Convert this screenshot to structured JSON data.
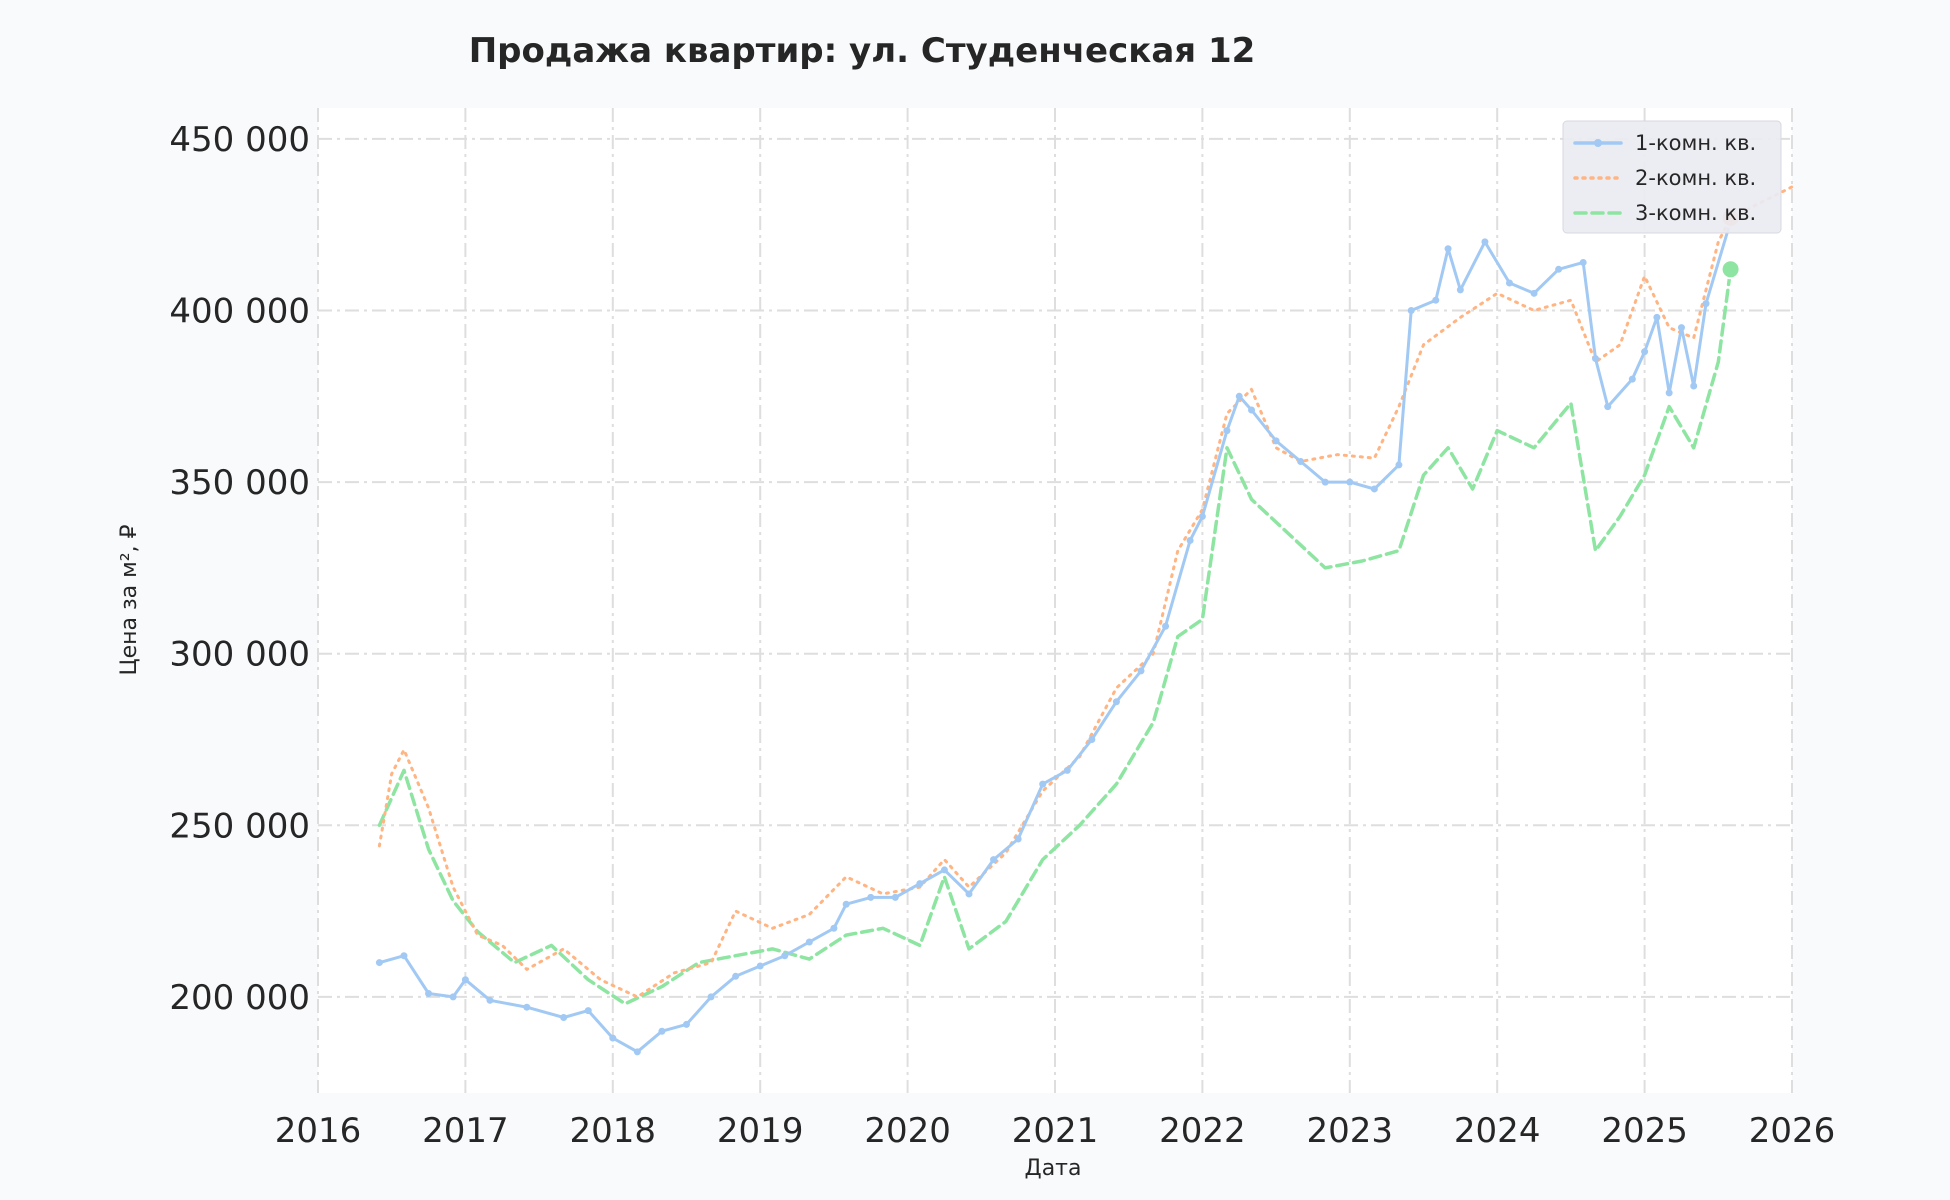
{
  "chart_data": {
    "type": "line",
    "title": "Продажа квартир: ул. Студенческая 12",
    "xlabel": "Дата",
    "ylabel": "Цена за м², ₽",
    "x_ticks": [
      "2016",
      "2017",
      "2018",
      "2019",
      "2020",
      "2021",
      "2022",
      "2023",
      "2024",
      "2025",
      "2026"
    ],
    "y_ticks": [
      "200 000",
      "250 000",
      "300 000",
      "350 000",
      "400 000",
      "450 000"
    ],
    "xlim": [
      "2016-01-01",
      "2026-01-01"
    ],
    "ylim": [
      172000,
      459000
    ],
    "grid": true,
    "legend_position": "top-right",
    "series": [
      {
        "name": "1-комн. кв.",
        "color": "#a1c9f4",
        "style": "solid-with-markers",
        "points": [
          [
            "2016-06",
            210000
          ],
          [
            "2016-08",
            212000
          ],
          [
            "2016-10",
            201000
          ],
          [
            "2016-12",
            200000
          ],
          [
            "2017-01",
            205000
          ],
          [
            "2017-03",
            199000
          ],
          [
            "2017-06",
            197000
          ],
          [
            "2017-09",
            194000
          ],
          [
            "2017-11",
            196000
          ],
          [
            "2018-01",
            188000
          ],
          [
            "2018-03",
            184000
          ],
          [
            "2018-05",
            190000
          ],
          [
            "2018-07",
            192000
          ],
          [
            "2018-09",
            200000
          ],
          [
            "2018-11",
            206000
          ],
          [
            "2019-01",
            209000
          ],
          [
            "2019-03",
            212000
          ],
          [
            "2019-05",
            216000
          ],
          [
            "2019-07",
            220000
          ],
          [
            "2019-08",
            227000
          ],
          [
            "2019-10",
            229000
          ],
          [
            "2019-12",
            229000
          ],
          [
            "2020-02",
            233000
          ],
          [
            "2020-04",
            237000
          ],
          [
            "2020-06",
            230000
          ],
          [
            "2020-08",
            240000
          ],
          [
            "2020-10",
            246000
          ],
          [
            "2020-12",
            262000
          ],
          [
            "2021-02",
            266000
          ],
          [
            "2021-04",
            275000
          ],
          [
            "2021-06",
            286000
          ],
          [
            "2021-08",
            295000
          ],
          [
            "2021-10",
            308000
          ],
          [
            "2021-12",
            333000
          ],
          [
            "2022-01",
            340000
          ],
          [
            "2022-03",
            365000
          ],
          [
            "2022-04",
            375000
          ],
          [
            "2022-05",
            371000
          ],
          [
            "2022-07",
            362000
          ],
          [
            "2022-09",
            356000
          ],
          [
            "2022-11",
            350000
          ],
          [
            "2023-01",
            350000
          ],
          [
            "2023-03",
            348000
          ],
          [
            "2023-05",
            355000
          ],
          [
            "2023-06",
            400000
          ],
          [
            "2023-08",
            403000
          ],
          [
            "2023-09",
            418000
          ],
          [
            "2023-10",
            406000
          ],
          [
            "2023-12",
            420000
          ],
          [
            "2024-02",
            408000
          ],
          [
            "2024-04",
            405000
          ],
          [
            "2024-06",
            412000
          ],
          [
            "2024-08",
            414000
          ],
          [
            "2024-09",
            386000
          ],
          [
            "2024-10",
            372000
          ],
          [
            "2024-12",
            380000
          ],
          [
            "2025-01",
            388000
          ],
          [
            "2025-02",
            398000
          ],
          [
            "2025-03",
            376000
          ],
          [
            "2025-04",
            395000
          ],
          [
            "2025-05",
            378000
          ],
          [
            "2025-06",
            402000
          ],
          [
            "2025-08",
            426000
          ]
        ]
      },
      {
        "name": "2-комн. кв.",
        "color": "#ffb482",
        "style": "dotted",
        "points": [
          [
            "2016-06",
            244000
          ],
          [
            "2016-07",
            265000
          ],
          [
            "2016-08",
            272000
          ],
          [
            "2016-10",
            255000
          ],
          [
            "2016-12",
            232000
          ],
          [
            "2017-02",
            218000
          ],
          [
            "2017-04",
            215000
          ],
          [
            "2017-06",
            208000
          ],
          [
            "2017-09",
            214000
          ],
          [
            "2017-12",
            205000
          ],
          [
            "2018-03",
            200000
          ],
          [
            "2018-06",
            207000
          ],
          [
            "2018-09",
            210000
          ],
          [
            "2018-11",
            225000
          ],
          [
            "2019-02",
            220000
          ],
          [
            "2019-05",
            224000
          ],
          [
            "2019-08",
            235000
          ],
          [
            "2019-11",
            230000
          ],
          [
            "2020-02",
            232000
          ],
          [
            "2020-04",
            240000
          ],
          [
            "2020-06",
            232000
          ],
          [
            "2020-09",
            242000
          ],
          [
            "2020-12",
            260000
          ],
          [
            "2021-03",
            270000
          ],
          [
            "2021-06",
            290000
          ],
          [
            "2021-09",
            300000
          ],
          [
            "2021-11",
            330000
          ],
          [
            "2022-01",
            342000
          ],
          [
            "2022-03",
            370000
          ],
          [
            "2022-05",
            377000
          ],
          [
            "2022-07",
            360000
          ],
          [
            "2022-09",
            356000
          ],
          [
            "2022-12",
            358000
          ],
          [
            "2023-03",
            357000
          ],
          [
            "2023-05",
            372000
          ],
          [
            "2023-07",
            390000
          ],
          [
            "2023-10",
            398000
          ],
          [
            "2024-01",
            405000
          ],
          [
            "2024-04",
            400000
          ],
          [
            "2024-07",
            403000
          ],
          [
            "2024-09",
            385000
          ],
          [
            "2024-11",
            390000
          ],
          [
            "2025-01",
            410000
          ],
          [
            "2025-03",
            395000
          ],
          [
            "2025-05",
            392000
          ],
          [
            "2025-07",
            420000
          ],
          [
            "2025-08",
            427000
          ],
          [
            "2026-01",
            436000
          ]
        ]
      },
      {
        "name": "3-комн. кв.",
        "color": "#8de5a1",
        "style": "dashed",
        "points": [
          [
            "2016-06",
            250000
          ],
          [
            "2016-08",
            266000
          ],
          [
            "2016-10",
            243000
          ],
          [
            "2016-12",
            228000
          ],
          [
            "2017-02",
            219000
          ],
          [
            "2017-05",
            210000
          ],
          [
            "2017-08",
            215000
          ],
          [
            "2017-11",
            205000
          ],
          [
            "2018-02",
            198000
          ],
          [
            "2018-05",
            203000
          ],
          [
            "2018-08",
            210000
          ],
          [
            "2018-11",
            212000
          ],
          [
            "2019-02",
            214000
          ],
          [
            "2019-05",
            211000
          ],
          [
            "2019-08",
            218000
          ],
          [
            "2019-11",
            220000
          ],
          [
            "2020-02",
            215000
          ],
          [
            "2020-04",
            235000
          ],
          [
            "2020-06",
            214000
          ],
          [
            "2020-09",
            222000
          ],
          [
            "2020-12",
            240000
          ],
          [
            "2021-03",
            250000
          ],
          [
            "2021-06",
            262000
          ],
          [
            "2021-09",
            280000
          ],
          [
            "2021-11",
            305000
          ],
          [
            "2022-01",
            310000
          ],
          [
            "2022-03",
            360000
          ],
          [
            "2022-05",
            345000
          ],
          [
            "2022-08",
            335000
          ],
          [
            "2022-11",
            325000
          ],
          [
            "2023-02",
            327000
          ],
          [
            "2023-05",
            330000
          ],
          [
            "2023-07",
            352000
          ],
          [
            "2023-09",
            360000
          ],
          [
            "2023-11",
            348000
          ],
          [
            "2024-01",
            365000
          ],
          [
            "2024-04",
            360000
          ],
          [
            "2024-07",
            373000
          ],
          [
            "2024-09",
            330000
          ],
          [
            "2024-11",
            340000
          ],
          [
            "2025-01",
            352000
          ],
          [
            "2025-03",
            372000
          ],
          [
            "2025-05",
            360000
          ],
          [
            "2025-07",
            385000
          ],
          [
            "2025-08",
            412000
          ]
        ]
      }
    ],
    "highlights": [
      {
        "series": "2-комн. кв.",
        "x": "2025-08",
        "y": 427000
      },
      {
        "series": "3-комн. кв.",
        "x": "2025-08",
        "y": 412000
      }
    ]
  }
}
